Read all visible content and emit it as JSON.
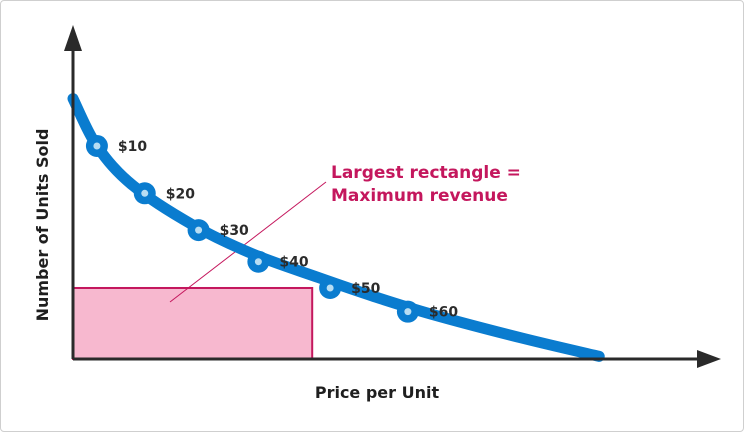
{
  "chart_data": {
    "type": "line",
    "title": "",
    "xlabel": "Price per Unit",
    "ylabel": "Number of Units Sold",
    "xlim": [
      0,
      100
    ],
    "ylim": [
      0,
      100
    ],
    "grid": false,
    "legend": "none",
    "curve": [
      {
        "x": 0,
        "y": 99
      },
      {
        "x": 4,
        "y": 81
      },
      {
        "x": 10,
        "y": 66
      },
      {
        "x": 20,
        "y": 51
      },
      {
        "x": 30,
        "y": 40
      },
      {
        "x": 41,
        "y": 31
      },
      {
        "x": 50,
        "y": 24
      },
      {
        "x": 60,
        "y": 17
      },
      {
        "x": 75,
        "y": 8
      },
      {
        "x": 88,
        "y": 1
      }
    ],
    "points": [
      {
        "label": "$10",
        "x": 4,
        "y": 81
      },
      {
        "label": "$20",
        "x": 12,
        "y": 63
      },
      {
        "label": "$30",
        "x": 21,
        "y": 49
      },
      {
        "label": "$40",
        "x": 31,
        "y": 37
      },
      {
        "label": "$50",
        "x": 43,
        "y": 27
      },
      {
        "label": "$60",
        "x": 56,
        "y": 18
      }
    ],
    "rectangle": {
      "x": 40,
      "y": 27
    },
    "annotation": {
      "lines": [
        "Largest rectangle =",
        "Maximum revenue"
      ]
    }
  },
  "colors": {
    "curve": "#0a7ccf",
    "point_fill": "#b7ddf3",
    "rect_fill": "#f7b8cf",
    "rect_stroke": "#c4175d",
    "annotation": "#c4175d",
    "axis": "#2a2a2a"
  }
}
